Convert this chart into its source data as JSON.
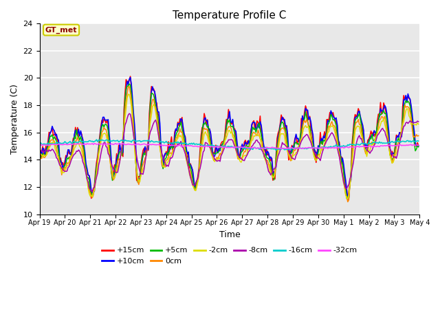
{
  "title": "Temperature Profile C",
  "xlabel": "Time",
  "ylabel": "Temperature (C)",
  "ylim": [
    10,
    24
  ],
  "xlim": [
    0,
    360
  ],
  "background_color": "#ffffff",
  "plot_bg_color": "#e8e8e8",
  "series_colors": {
    "+15cm": "#ff0000",
    "+10cm": "#0000ff",
    "+5cm": "#00bb00",
    "0cm": "#ff8800",
    "-2cm": "#dddd00",
    "-8cm": "#aa00aa",
    "-16cm": "#00cccc",
    "-32cm": "#ff44ff"
  },
  "legend_label": "GT_met",
  "legend_box_color": "#cccc00",
  "legend_box_bg": "#ffffcc",
  "n_points": 360,
  "x_ticks": [
    0,
    24,
    48,
    72,
    96,
    120,
    144,
    168,
    192,
    216,
    240,
    264,
    288,
    312,
    336,
    360
  ],
  "x_tick_labels": [
    "Apr 19",
    "Apr 20",
    "Apr 21",
    "Apr 22",
    "Apr 23",
    "Apr 24",
    "Apr 25",
    "Apr 26",
    "Apr 27",
    "Apr 28",
    "Apr 29",
    "Apr 30",
    "May 1",
    "May 2",
    "May 3",
    "May 4"
  ],
  "grid_y_values": [
    10,
    12,
    14,
    16,
    18,
    20,
    22,
    24
  ],
  "seed": 42,
  "figsize": [
    6.4,
    4.8
  ],
  "dpi": 100
}
